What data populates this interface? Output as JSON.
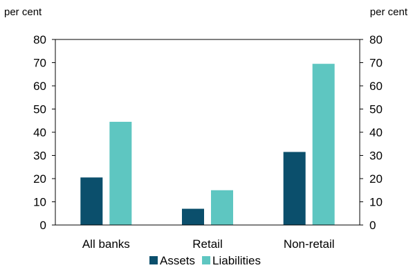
{
  "chart_data": {
    "type": "bar",
    "categories": [
      "All banks",
      "Retail",
      "Non-retail"
    ],
    "series": [
      {
        "name": "Assets",
        "values": [
          20.5,
          7,
          31.5
        ],
        "color": "#0b4f6c"
      },
      {
        "name": "Liabilities",
        "values": [
          44.5,
          15,
          69.5
        ],
        "color": "#5ec6c1"
      }
    ],
    "ylim": [
      0,
      80
    ],
    "yticks": [
      0,
      10,
      20,
      30,
      40,
      50,
      60,
      70,
      80
    ],
    "y_unit_left": "per cent",
    "y_unit_right": "per cent",
    "legend_position": "bottom",
    "grid": false
  }
}
